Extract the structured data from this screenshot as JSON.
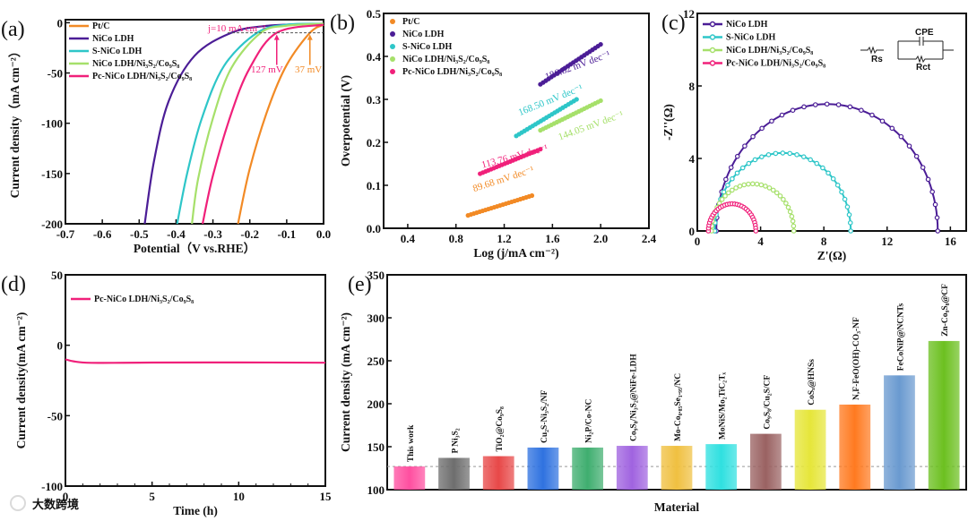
{
  "panel_labels": [
    "(a)",
    "(b)",
    "(c)",
    "(d)",
    "(e)"
  ],
  "watermark": "大数跨境",
  "chart_data": [
    {
      "type": "line",
      "title": "",
      "xlabel": "Potential（V vs.RHE）",
      "ylabel": "Current density（mA cm⁻²）",
      "xlim": [
        -0.7,
        0.0
      ],
      "ylim": [
        -200,
        0
      ],
      "xticks": [
        "-0.7",
        "-0.6",
        "-0.5",
        "-0.4",
        "-0.3",
        "-0.2",
        "-0.1",
        "0.0"
      ],
      "yticks": [
        "-200",
        "-150",
        "-100",
        "-50",
        "0"
      ],
      "legend": "top-left",
      "annotations": {
        "reference": "j=10 mA cm⁻²",
        "pc_overpotential": "127 mV",
        "ptc_overpotential": "37 mV",
        "reference_j": -10
      },
      "series": [
        {
          "name": "Pt/C",
          "color": "#f28a25",
          "points": [
            [
              0,
              -2
            ],
            [
              -0.037,
              -10
            ],
            [
              -0.1,
              -42
            ],
            [
              -0.15,
              -85
            ],
            [
              -0.2,
              -145
            ],
            [
              -0.232,
              -200
            ]
          ]
        },
        {
          "name": "NiCo LDH",
          "color": "#4b1d96",
          "points": [
            [
              0,
              -1
            ],
            [
              -0.15,
              -3
            ],
            [
              -0.25,
              -10
            ],
            [
              -0.35,
              -33
            ],
            [
              -0.42,
              -78
            ],
            [
              -0.46,
              -138
            ],
            [
              -0.485,
              -200
            ]
          ]
        },
        {
          "name": "S-NiCo LDH",
          "color": "#2ec6c8",
          "points": [
            [
              0,
              -1
            ],
            [
              -0.1,
              -2
            ],
            [
              -0.18,
              -10
            ],
            [
              -0.27,
              -43
            ],
            [
              -0.33,
              -95
            ],
            [
              -0.37,
              -150
            ],
            [
              -0.397,
              -200
            ]
          ]
        },
        {
          "name": "NiCo LDH/Ni₃S₂/Co₉S₈",
          "color": "#a6e06a",
          "points": [
            [
              0,
              -1
            ],
            [
              -0.1,
              -3
            ],
            [
              -0.17,
              -10
            ],
            [
              -0.25,
              -45
            ],
            [
              -0.3,
              -95
            ],
            [
              -0.34,
              -155
            ],
            [
              -0.357,
              -200
            ]
          ]
        },
        {
          "name": "Pc-NiCo LDH/Ni₃S₂/Co₉S₈",
          "color": "#f0207a",
          "points": [
            [
              0,
              -2
            ],
            [
              -0.127,
              -10
            ],
            [
              -0.2,
              -45
            ],
            [
              -0.25,
              -90
            ],
            [
              -0.3,
              -152
            ],
            [
              -0.328,
              -200
            ]
          ]
        }
      ]
    },
    {
      "type": "scatter",
      "xlabel": "Log (j/mA cm⁻²)",
      "ylabel": "Overpotential (V)",
      "xlim": [
        0.2,
        2.4
      ],
      "ylim": [
        0,
        0.5
      ],
      "xticks": [
        "0.4",
        "0.8",
        "1.2",
        "1.6",
        "2.0",
        "2.4"
      ],
      "yticks": [
        "0.0",
        "0.1",
        "0.2",
        "0.3",
        "0.4",
        "0.5"
      ],
      "legend": "top-left",
      "series": [
        {
          "name": "Pt/C",
          "color": "#f28a25",
          "x": [
            0.9,
            1.43
          ],
          "y": [
            0.03,
            0.076
          ],
          "slope_label": "89.68 mV dec⁻¹"
        },
        {
          "name": "NiCo LDH",
          "color": "#4b1d96",
          "x": [
            1.5,
            2.0
          ],
          "y": [
            0.335,
            0.428
          ],
          "slope_label": "186.82 mV dec⁻¹"
        },
        {
          "name": "S-NiCo LDH",
          "color": "#2ec6c8",
          "x": [
            1.3,
            1.8
          ],
          "y": [
            0.215,
            0.3
          ],
          "slope_label": "168.50 mV dec⁻¹"
        },
        {
          "name": "NiCo LDH/Ni₃S₂/Co₉S₈",
          "color": "#a6e06a",
          "x": [
            1.5,
            2.0
          ],
          "y": [
            0.228,
            0.297
          ],
          "slope_label": "144.05 mV dec⁻¹"
        },
        {
          "name": "Pc-NiCo LDH/Ni₃S₂/Co₉S₈",
          "color": "#f0207a",
          "x": [
            1.0,
            1.5
          ],
          "y": [
            0.127,
            0.184
          ],
          "slope_label": "113.76 mV dec⁻¹"
        }
      ]
    },
    {
      "type": "line",
      "xlabel": "Z'(Ω)",
      "ylabel": "-Z''(Ω)",
      "xlim": [
        0,
        17
      ],
      "ylim": [
        0,
        12
      ],
      "xticks": [
        "0",
        "4",
        "8",
        "12",
        "16"
      ],
      "yticks": [
        "0",
        "4",
        "8",
        "12"
      ],
      "legend": "top-left",
      "circuit": {
        "cpe": "CPE",
        "rs": "Rs",
        "rct": "Rct"
      },
      "series": [
        {
          "name": "NiCo LDH",
          "color": "#4b1d96",
          "z_start": 1.2,
          "z_end": 15.2,
          "peak": 7.0
        },
        {
          "name": "S-NiCo LDH",
          "color": "#2ec6c8",
          "z_start": 1.1,
          "z_end": 9.7,
          "peak": 4.3
        },
        {
          "name": "NiCo LDH/Ni₃S₂/Co₉S₈",
          "color": "#a6e06a",
          "z_start": 0.9,
          "z_end": 6.1,
          "peak": 2.6
        },
        {
          "name": "Pc-NiCo LDH/Ni₃S₂/Co₉S₈",
          "color": "#f0207a",
          "z_start": 0.7,
          "z_end": 3.7,
          "peak": 1.5
        }
      ]
    },
    {
      "type": "line",
      "xlabel": "Time (h)",
      "ylabel": "Current density(mA cm⁻²)",
      "xlim": [
        0,
        15
      ],
      "ylim": [
        -100,
        50
      ],
      "xticks": [
        "0",
        "5",
        "10",
        "15"
      ],
      "yticks": [
        "-100",
        "-50",
        "0",
        "50"
      ],
      "legend": "top-left",
      "series": [
        {
          "name": "Pc-NiCo LDH/Ni₃S₂/Co₉S₈",
          "color": "#f0207a",
          "points": [
            [
              0,
              -10
            ],
            [
              0.5,
              -11.5
            ],
            [
              1.5,
              -12.5
            ],
            [
              5,
              -12.3
            ],
            [
              10,
              -12.2
            ],
            [
              15,
              -12.4
            ]
          ]
        }
      ]
    },
    {
      "type": "bar",
      "xlabel": "Material",
      "ylabel": "Current density (mA cm⁻²)",
      "ylim": [
        100,
        350
      ],
      "yticks": [
        "100",
        "150",
        "200",
        "250",
        "300",
        "350"
      ],
      "reference_line": 127,
      "categories": [
        "This work",
        "P Ni₃S₂",
        "TiO₂@Co₉S₈",
        "Cu₂S-Ni₃S₂/NF",
        "Ni₂P/Co-NC",
        "Co₉S₈/Ni₃S₂@NiFe-LDH",
        "Mo-Co₀.₈₅Se₁.₉₅/NC",
        "MoNiS/Mo₂TiC₂Tₓ",
        "Co₉S₈/Cu₂S/CF",
        "CoSₓ@HNSs",
        "N,F-FeO(OH)-CO₃-NF",
        "FeCoNiP@NCNTs",
        "Zn-Co₉S₈@CF"
      ],
      "values": [
        127,
        137,
        139,
        149,
        149,
        151,
        151,
        153,
        165,
        193,
        199,
        233,
        273
      ],
      "colors": [
        "#ff4fa0",
        "#6e6e6e",
        "#e84848",
        "#2f72e0",
        "#3fae6f",
        "#a063e0",
        "#f0c040",
        "#2fe0e0",
        "#9a6262",
        "#e6e63a",
        "#ff7a20",
        "#6a9ad0",
        "#6cc020"
      ]
    }
  ]
}
